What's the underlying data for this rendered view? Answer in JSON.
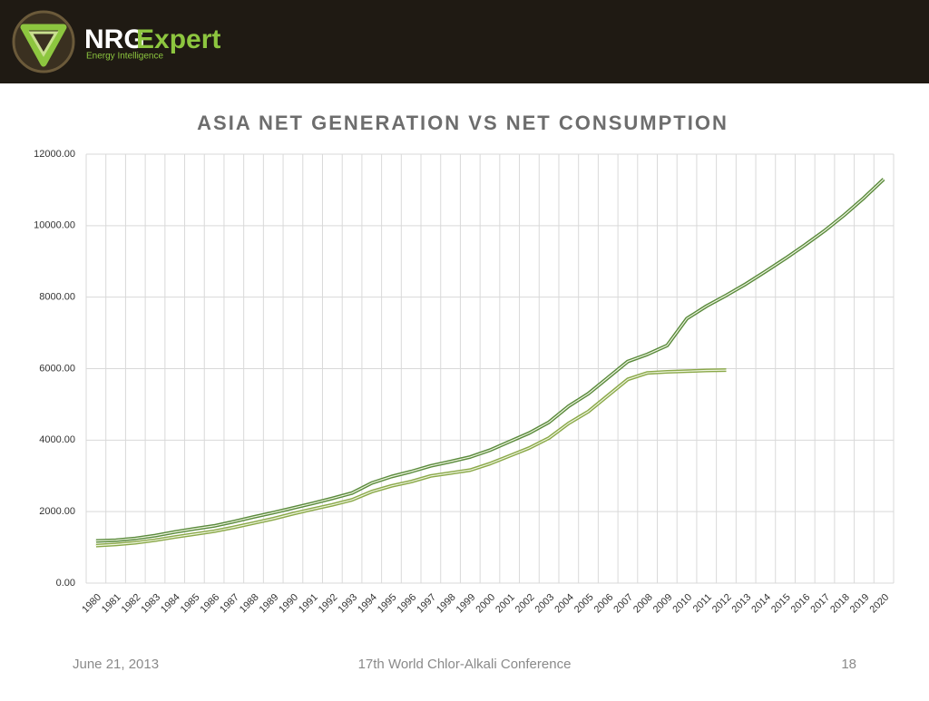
{
  "header": {
    "brand_1": "NRG",
    "brand_2": "Expert",
    "tagline": "Energy Intelligence"
  },
  "chart_data": {
    "type": "line",
    "title": "ASIA NET GENERATION VS NET CONSUMPTION",
    "categories": [
      "1980",
      "1981",
      "1982",
      "1983",
      "1984",
      "1985",
      "1986",
      "1987",
      "1988",
      "1989",
      "1990",
      "1991",
      "1992",
      "1993",
      "1994",
      "1995",
      "1996",
      "1997",
      "1998",
      "1999",
      "2000",
      "2001",
      "2002",
      "2003",
      "2004",
      "2005",
      "2006",
      "2007",
      "2008",
      "2009",
      "2010",
      "2011",
      "2012",
      "2013",
      "2014",
      "2015",
      "2016",
      "2017",
      "2018",
      "2019",
      "2020"
    ],
    "series": [
      {
        "color": "#5a8a3c",
        "values": [
          1180,
          1200,
          1250,
          1330,
          1430,
          1520,
          1600,
          1720,
          1850,
          1970,
          2100,
          2230,
          2370,
          2520,
          2800,
          2980,
          3120,
          3280,
          3400,
          3530,
          3720,
          3960,
          4200,
          4500,
          4950,
          5300,
          5750,
          6200,
          6400,
          6650,
          7400,
          7750,
          8050,
          8370,
          8720,
          9080,
          9460,
          9860,
          10300,
          10780,
          11300
        ]
      },
      {
        "color": "#8aa848",
        "values": [
          1050,
          1080,
          1130,
          1200,
          1290,
          1370,
          1450,
          1560,
          1680,
          1800,
          1940,
          2070,
          2190,
          2330,
          2560,
          2720,
          2840,
          3000,
          3080,
          3160,
          3340,
          3560,
          3780,
          4060,
          4470,
          4800,
          5250,
          5700,
          5880,
          5910,
          5930,
          5950,
          5960,
          null,
          null,
          null,
          null,
          null,
          null,
          null,
          null
        ]
      }
    ],
    "ylim": [
      0,
      12000
    ],
    "yticks": [
      {
        "value": 0,
        "label": "0.00"
      },
      {
        "value": 2000,
        "label": "2000.00"
      },
      {
        "value": 4000,
        "label": "4000.00"
      },
      {
        "value": 6000,
        "label": "6000.00"
      },
      {
        "value": 8000,
        "label": "8000.00"
      },
      {
        "value": 10000,
        "label": "10000.00"
      },
      {
        "value": 12000,
        "label": "12000.00"
      }
    ],
    "grid": true
  },
  "footer": {
    "date": "June 21, 2013",
    "event": "17th World Chlor-Alkali Conference",
    "page": "18"
  }
}
